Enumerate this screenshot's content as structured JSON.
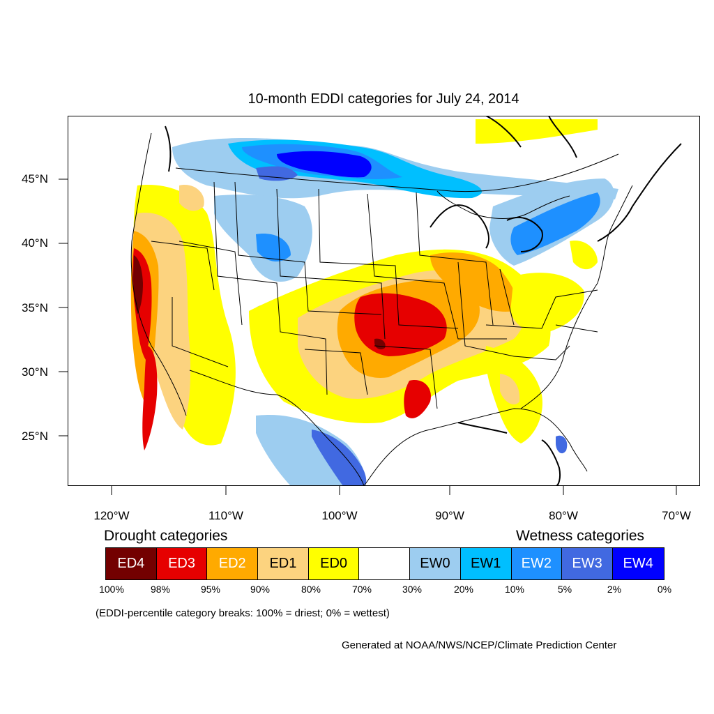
{
  "title": "10-month EDDI categories for July 24, 2014",
  "lat_labels": [
    "45°N",
    "40°N",
    "35°N",
    "30°N",
    "25°N"
  ],
  "lon_labels": [
    "120°W",
    "110°W",
    "100°W",
    "90°W",
    "80°W",
    "70°W"
  ],
  "legend": {
    "drought_title": "Drought categories",
    "wetness_title": "Wetness categories",
    "categories": [
      {
        "label": "ED4",
        "color": "#730000",
        "text_color": "#ffffff"
      },
      {
        "label": "ED3",
        "color": "#e60000",
        "text_color": "#ffffff"
      },
      {
        "label": "ED2",
        "color": "#ffaa00",
        "text_color": "#ffffff"
      },
      {
        "label": "ED1",
        "color": "#fcd37f",
        "text_color": "#000000"
      },
      {
        "label": "ED0",
        "color": "#ffff00",
        "text_color": "#000000"
      },
      {
        "label": "",
        "color": "#ffffff",
        "text_color": "#000000"
      },
      {
        "label": "EW0",
        "color": "#9dcdf0",
        "text_color": "#000000"
      },
      {
        "label": "EW1",
        "color": "#00bfff",
        "text_color": "#000000"
      },
      {
        "label": "EW2",
        "color": "#1e90ff",
        "text_color": "#ffffff"
      },
      {
        "label": "EW3",
        "color": "#4169e1",
        "text_color": "#ffffff"
      },
      {
        "label": "EW4",
        "color": "#0000ff",
        "text_color": "#ffffff"
      }
    ],
    "breaks": [
      "100%",
      "98%",
      "95%",
      "90%",
      "80%",
      "70%",
      "30%",
      "20%",
      "10%",
      "5%",
      "2%",
      "0%"
    ]
  },
  "note": "(EDDI-percentile category breaks: 100% = driest; 0% = wettest)",
  "credit": "Generated at NOAA/NWS/NCEP/Climate Prediction Center"
}
